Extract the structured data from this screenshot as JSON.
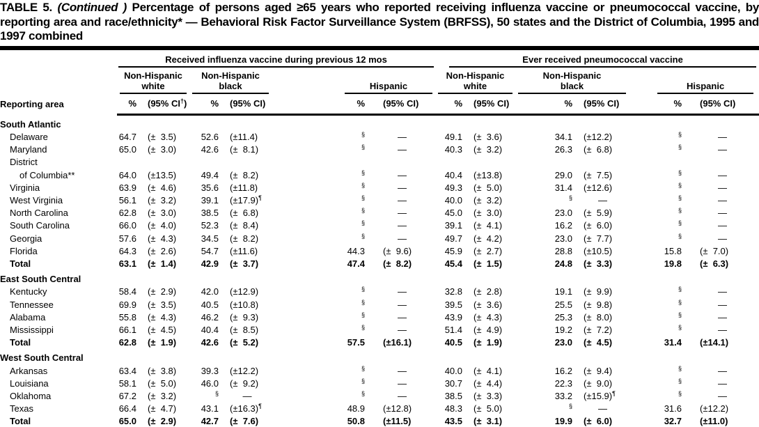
{
  "title": {
    "table_label": "TABLE 5.",
    "continued": "(Continued )",
    "body": "Percentage of persons aged ≥65 years who reported receiving influenza vaccine or pneumococcal vaccine, by reporting area and race/ethnicity* — Behavioral Risk Factor Surveillance System (BRFSS), 50 states and the District of Columbia, 1995 and 1997 combined"
  },
  "table": {
    "row_header_label": "Reporting area",
    "span_headers": [
      {
        "label": "Received influenza vaccine during previous 12 mos"
      },
      {
        "label": "Ever received pneumococcal vaccine"
      }
    ],
    "subgroup_headers": [
      {
        "line1": "Non-Hispanic",
        "line2": "white"
      },
      {
        "line1": "Non-Hispanic",
        "line2": "black"
      },
      {
        "line1": "Hispanic",
        "line2": ""
      },
      {
        "line1": "Non-Hispanic",
        "line2": "white"
      },
      {
        "line1": "Non-Hispanic",
        "line2": "black"
      },
      {
        "line1": "Hispanic",
        "line2": ""
      }
    ],
    "measure_headers": {
      "pct": "%",
      "ci_first": "(95% CI†)",
      "ci": "(95% CI)"
    },
    "sections": [
      {
        "name": "South Atlantic",
        "rows": [
          {
            "name": "Delaware",
            "indent": 1,
            "cells": [
              "64.7",
              "(±  3.5)",
              "52.6",
              "(±11.4)",
              "§",
              "—",
              "49.1",
              "(±  3.6)",
              "34.1",
              "(±12.2)",
              "§",
              "—"
            ]
          },
          {
            "name": "Maryland",
            "indent": 1,
            "cells": [
              "65.0",
              "(±  3.0)",
              "42.6",
              "(±  8.1)",
              "§",
              "—",
              "40.3",
              "(±  3.2)",
              "26.3",
              "(±  6.8)",
              "§",
              "—"
            ]
          },
          {
            "name": "District",
            "indent": 1,
            "cells": [
              "",
              "",
              "",
              "",
              "",
              "",
              "",
              "",
              "",
              "",
              "",
              ""
            ]
          },
          {
            "name": "of Columbia**",
            "indent": 2,
            "cells": [
              "64.0",
              "(±13.5)",
              "49.4",
              "(±  8.2)",
              "§",
              "—",
              "40.4",
              "(±13.8)",
              "29.0",
              "(±  7.5)",
              "§",
              "—"
            ]
          },
          {
            "name": "Virginia",
            "indent": 1,
            "cells": [
              "63.9",
              "(±  4.6)",
              "35.6",
              "(±11.8)",
              "§",
              "—",
              "49.3",
              "(±  5.0)",
              "31.4",
              "(±12.6)",
              "§",
              "—"
            ]
          },
          {
            "name": "West Virginia",
            "indent": 1,
            "cells": [
              "56.1",
              "(±  3.2)",
              "39.1",
              "(±17.9)¶",
              "§",
              "—",
              "40.0",
              "(±  3.2)",
              "§",
              "—",
              "§",
              "—"
            ]
          },
          {
            "name": "North Carolina",
            "indent": 1,
            "cells": [
              "62.8",
              "(±  3.0)",
              "38.5",
              "(±  6.8)",
              "§",
              "—",
              "45.0",
              "(±  3.0)",
              "23.0",
              "(±  5.9)",
              "§",
              "—"
            ]
          },
          {
            "name": "South Carolina",
            "indent": 1,
            "cells": [
              "66.0",
              "(±  4.0)",
              "52.3",
              "(±  8.4)",
              "§",
              "—",
              "39.1",
              "(±  4.1)",
              "16.2",
              "(±  6.0)",
              "§",
              "—"
            ]
          },
          {
            "name": "Georgia",
            "indent": 1,
            "cells": [
              "57.6",
              "(±  4.3)",
              "34.5",
              "(±  8.2)",
              "§",
              "—",
              "49.7",
              "(±  4.2)",
              "23.0",
              "(±  7.7)",
              "§",
              "—"
            ]
          },
          {
            "name": "Florida",
            "indent": 1,
            "cells": [
              "64.3",
              "(±  2.6)",
              "54.7",
              "(±11.6)",
              "44.3",
              "(±  9.6)",
              "45.9",
              "(±  2.7)",
              "28.8",
              "(±10.5)",
              "15.8",
              "(±  7.0)"
            ]
          },
          {
            "name": "Total",
            "indent": 1,
            "bold": true,
            "cells": [
              "63.1",
              "(±  1.4)",
              "42.9",
              "(±  3.7)",
              "47.4",
              "(±  8.2)",
              "45.4",
              "(±  1.5)",
              "24.8",
              "(±  3.3)",
              "19.8",
              "(±  6.3)"
            ]
          }
        ]
      },
      {
        "name": "East South Central",
        "rows": [
          {
            "name": "Kentucky",
            "indent": 1,
            "cells": [
              "58.4",
              "(±  2.9)",
              "42.0",
              "(±12.9)",
              "§",
              "—",
              "32.8",
              "(±  2.8)",
              "19.1",
              "(±  9.9)",
              "§",
              "—"
            ]
          },
          {
            "name": "Tennessee",
            "indent": 1,
            "cells": [
              "69.9",
              "(±  3.5)",
              "40.5",
              "(±10.8)",
              "§",
              "—",
              "39.5",
              "(±  3.6)",
              "25.5",
              "(±  9.8)",
              "§",
              "—"
            ]
          },
          {
            "name": "Alabama",
            "indent": 1,
            "cells": [
              "55.8",
              "(±  4.3)",
              "46.2",
              "(±  9.3)",
              "§",
              "—",
              "43.9",
              "(±  4.3)",
              "25.3",
              "(±  8.0)",
              "§",
              "—"
            ]
          },
          {
            "name": "Mississippi",
            "indent": 1,
            "cells": [
              "66.1",
              "(±  4.5)",
              "40.4",
              "(±  8.5)",
              "§",
              "—",
              "51.4",
              "(±  4.9)",
              "19.2",
              "(±  7.2)",
              "§",
              "—"
            ]
          },
          {
            "name": "Total",
            "indent": 1,
            "bold": true,
            "cells": [
              "62.8",
              "(±  1.9)",
              "42.6",
              "(±  5.2)",
              "57.5",
              "(±16.1)",
              "40.5",
              "(±  1.9)",
              "23.0",
              "(±  4.5)",
              "31.4",
              "(±14.1)"
            ]
          }
        ]
      },
      {
        "name": "West South Central",
        "rows": [
          {
            "name": "Arkansas",
            "indent": 1,
            "cells": [
              "63.4",
              "(±  3.8)",
              "39.3",
              "(±12.2)",
              "§",
              "—",
              "40.0",
              "(±  4.1)",
              "16.2",
              "(±  9.4)",
              "§",
              "—"
            ]
          },
          {
            "name": "Louisiana",
            "indent": 1,
            "cells": [
              "58.1",
              "(±  5.0)",
              "46.0",
              "(±  9.2)",
              "§",
              "—",
              "30.7",
              "(±  4.4)",
              "22.3",
              "(±  9.0)",
              "§",
              "—"
            ]
          },
          {
            "name": "Oklahoma",
            "indent": 1,
            "cells": [
              "67.2",
              "(±  3.2)",
              "§",
              "—",
              "§",
              "—",
              "38.5",
              "(±  3.3)",
              "33.2",
              "(±15.9)¶",
              "§",
              "—"
            ]
          },
          {
            "name": "Texas",
            "indent": 1,
            "cells": [
              "66.4",
              "(±  4.7)",
              "43.1",
              "(±16.3)¶",
              "48.9",
              "(±12.8)",
              "48.3",
              "(±  5.0)",
              "§",
              "—",
              "31.6",
              "(±12.2)"
            ]
          },
          {
            "name": "Total",
            "indent": 1,
            "bold": true,
            "cells": [
              "65.0",
              "(±  2.9)",
              "42.7",
              "(±  7.6)",
              "50.8",
              "(±11.5)",
              "43.5",
              "(±  3.1)",
              "19.9",
              "(±  6.0)",
              "32.7",
              "(±11.0)"
            ]
          }
        ]
      }
    ]
  }
}
